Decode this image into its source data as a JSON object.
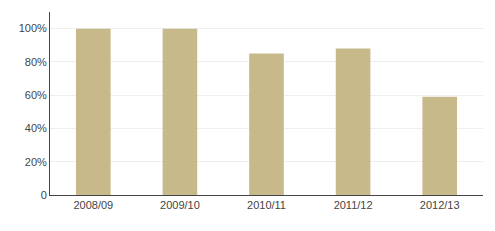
{
  "chart_data": {
    "type": "bar",
    "categories": [
      "2008/09",
      "2009/10",
      "2010/11",
      "2011/12",
      "2012/13"
    ],
    "values": [
      100,
      100,
      85,
      88,
      59
    ],
    "color": "#C8B98A",
    "ylim": [
      0,
      110
    ],
    "yticks": [
      0,
      {
        "value": 20,
        "label": "20%"
      },
      {
        "value": 40,
        "label": "40%"
      },
      {
        "value": 60,
        "label": "60%"
      },
      {
        "value": 80,
        "label": "80%"
      },
      {
        "value": 100,
        "label": "100%"
      }
    ],
    "grid": true
  }
}
